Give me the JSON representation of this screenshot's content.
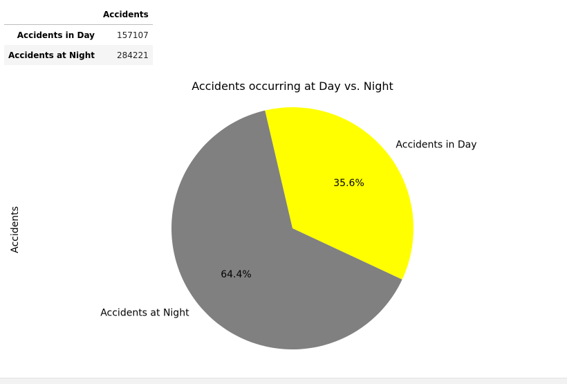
{
  "table": {
    "header": [
      "",
      "Accidents"
    ],
    "rows": [
      {
        "label": "Accidents in Day",
        "value": "157107"
      },
      {
        "label": "Accidents at Night",
        "value": "284221"
      }
    ]
  },
  "chart_data": {
    "type": "pie",
    "title": "Accidents occurring at Day vs. Night",
    "ylabel": "Accidents",
    "categories": [
      "Accidents in Day",
      "Accidents at Night"
    ],
    "values": [
      157107,
      284221
    ],
    "percent_labels": [
      "35.6%",
      "64.4%"
    ],
    "colors": [
      "#ffff00",
      "#808080"
    ],
    "start_angle_deg": 0,
    "direction": "counterclockwise"
  }
}
